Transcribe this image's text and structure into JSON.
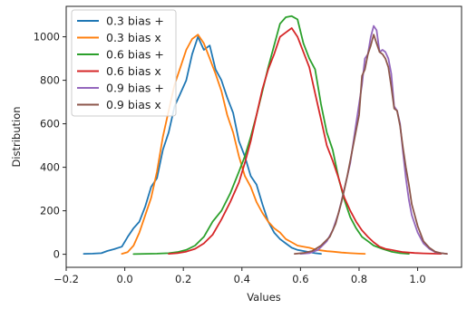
{
  "chart_data": {
    "type": "line",
    "title": "",
    "xlabel": "Values",
    "ylabel": "Distribution",
    "xlim": [
      -0.2,
      1.15
    ],
    "ylim": [
      -60,
      1140
    ],
    "xticks": [
      -0.2,
      0.0,
      0.2,
      0.4,
      0.6,
      0.8,
      1.0
    ],
    "xtick_labels": [
      "−0.2",
      "0.0",
      "0.2",
      "0.4",
      "0.6",
      "0.8",
      "1.0"
    ],
    "yticks": [
      0,
      200,
      400,
      600,
      800,
      1000
    ],
    "ytick_labels": [
      "0",
      "200",
      "400",
      "600",
      "800",
      "1000"
    ],
    "grid": false,
    "legend_position": "top-left",
    "series": [
      {
        "name": "0.3 bias +",
        "color": "#1f77b4",
        "x": [
          -0.14,
          -0.11,
          -0.08,
          -0.06,
          -0.04,
          -0.01,
          0.01,
          0.03,
          0.05,
          0.07,
          0.09,
          0.11,
          0.13,
          0.15,
          0.17,
          0.19,
          0.21,
          0.23,
          0.25,
          0.27,
          0.29,
          0.31,
          0.33,
          0.35,
          0.37,
          0.39,
          0.41,
          0.43,
          0.45,
          0.47,
          0.49,
          0.51,
          0.53,
          0.55,
          0.57,
          0.59,
          0.61,
          0.63,
          0.65,
          0.67
        ],
        "values": [
          2,
          3,
          5,
          15,
          22,
          35,
          80,
          120,
          150,
          220,
          310,
          350,
          480,
          560,
          680,
          740,
          800,
          920,
          1000,
          940,
          960,
          850,
          800,
          720,
          650,
          520,
          450,
          360,
          320,
          230,
          150,
          100,
          70,
          50,
          30,
          20,
          15,
          10,
          5,
          2
        ]
      },
      {
        "name": "0.3 bias x",
        "color": "#ff7f0e",
        "x": [
          -0.01,
          0.01,
          0.03,
          0.05,
          0.07,
          0.09,
          0.11,
          0.13,
          0.15,
          0.17,
          0.19,
          0.21,
          0.23,
          0.25,
          0.27,
          0.29,
          0.31,
          0.33,
          0.35,
          0.37,
          0.39,
          0.41,
          0.43,
          0.45,
          0.47,
          0.49,
          0.51,
          0.53,
          0.55,
          0.57,
          0.59,
          0.61,
          0.63,
          0.65,
          0.67,
          0.69,
          0.71,
          0.74,
          0.77,
          0.8,
          0.82
        ],
        "values": [
          2,
          10,
          40,
          100,
          180,
          260,
          380,
          540,
          660,
          780,
          860,
          940,
          990,
          1010,
          970,
          900,
          830,
          750,
          640,
          560,
          450,
          360,
          310,
          240,
          190,
          150,
          120,
          100,
          70,
          55,
          40,
          35,
          30,
          22,
          18,
          14,
          12,
          8,
          5,
          3,
          2
        ]
      },
      {
        "name": "0.6 bias +",
        "color": "#2ca02c",
        "x": [
          0.03,
          0.07,
          0.11,
          0.15,
          0.18,
          0.21,
          0.24,
          0.27,
          0.3,
          0.33,
          0.36,
          0.39,
          0.41,
          0.43,
          0.45,
          0.47,
          0.49,
          0.51,
          0.53,
          0.55,
          0.57,
          0.59,
          0.61,
          0.63,
          0.65,
          0.67,
          0.69,
          0.71,
          0.73,
          0.75,
          0.77,
          0.79,
          0.81,
          0.83,
          0.85,
          0.88,
          0.91,
          0.94,
          0.97
        ],
        "values": [
          1,
          2,
          3,
          5,
          10,
          20,
          40,
          80,
          150,
          200,
          280,
          380,
          450,
          540,
          640,
          750,
          860,
          960,
          1060,
          1090,
          1095,
          1080,
          970,
          900,
          850,
          690,
          560,
          480,
          350,
          250,
          170,
          120,
          80,
          60,
          40,
          25,
          12,
          5,
          2
        ]
      },
      {
        "name": "0.6 bias x",
        "color": "#d62728",
        "x": [
          0.15,
          0.18,
          0.21,
          0.24,
          0.27,
          0.3,
          0.33,
          0.36,
          0.39,
          0.41,
          0.43,
          0.45,
          0.47,
          0.49,
          0.51,
          0.53,
          0.55,
          0.57,
          0.59,
          0.61,
          0.63,
          0.65,
          0.67,
          0.69,
          0.71,
          0.73,
          0.75,
          0.77,
          0.79,
          0.81,
          0.83,
          0.85,
          0.87,
          0.89,
          0.91,
          0.93,
          0.95,
          0.97,
          0.99,
          1.02,
          1.05,
          1.08
        ],
        "values": [
          2,
          5,
          12,
          25,
          50,
          90,
          160,
          240,
          330,
          420,
          520,
          640,
          760,
          850,
          920,
          1000,
          1020,
          1040,
          1000,
          930,
          860,
          740,
          620,
          500,
          430,
          350,
          260,
          200,
          150,
          110,
          80,
          55,
          35,
          25,
          20,
          15,
          10,
          8,
          6,
          4,
          3,
          2
        ]
      },
      {
        "name": "0.9 bias +",
        "color": "#9467bd",
        "x": [
          0.6,
          0.63,
          0.66,
          0.69,
          0.71,
          0.73,
          0.75,
          0.77,
          0.79,
          0.81,
          0.82,
          0.83,
          0.84,
          0.85,
          0.86,
          0.87,
          0.88,
          0.89,
          0.9,
          0.91,
          0.92,
          0.93,
          0.94,
          0.95,
          0.96,
          0.97,
          0.98,
          1.0,
          1.02,
          1.04,
          1.06,
          1.08,
          1.1
        ],
        "values": [
          2,
          5,
          20,
          60,
          110,
          190,
          300,
          420,
          600,
          780,
          900,
          920,
          1000,
          1050,
          1030,
          930,
          940,
          930,
          900,
          830,
          680,
          660,
          600,
          470,
          350,
          250,
          180,
          100,
          50,
          25,
          10,
          5,
          2
        ]
      },
      {
        "name": "0.9 bias x",
        "color": "#8c564b",
        "x": [
          0.58,
          0.61,
          0.64,
          0.67,
          0.7,
          0.72,
          0.74,
          0.76,
          0.78,
          0.8,
          0.81,
          0.82,
          0.83,
          0.84,
          0.85,
          0.86,
          0.87,
          0.88,
          0.89,
          0.9,
          0.91,
          0.92,
          0.93,
          0.94,
          0.95,
          0.96,
          0.97,
          0.98,
          1.0,
          1.02,
          1.04,
          1.06,
          1.08,
          1.1
        ],
        "values": [
          2,
          6,
          15,
          40,
          80,
          140,
          240,
          360,
          500,
          640,
          820,
          850,
          920,
          960,
          1010,
          970,
          930,
          920,
          900,
          860,
          770,
          670,
          660,
          590,
          490,
          400,
          320,
          230,
          130,
          60,
          30,
          12,
          5,
          2
        ]
      }
    ]
  }
}
